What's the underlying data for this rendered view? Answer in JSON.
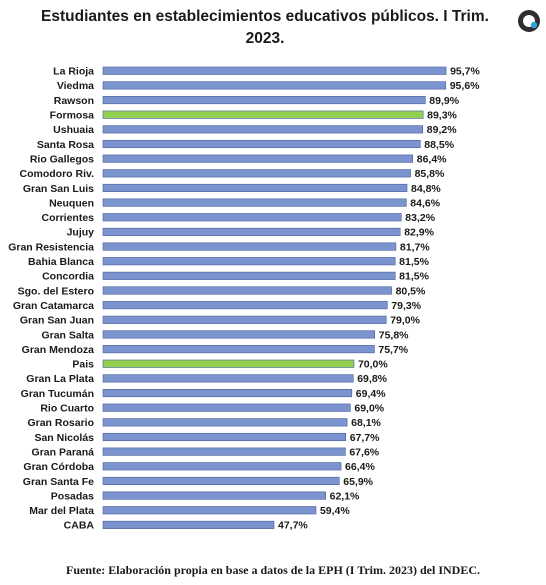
{
  "title": "Estudiantes en establecimientos educativos públicos. I Trim. 2023.",
  "source": "Fuente: Elaboración propia en base a datos de la EPH (I Trim. 2023) del INDEC.",
  "logo_icon": "circle-logo-icon",
  "colors": {
    "default": "#7b93cf",
    "highlight": "#92d050",
    "border": "#4a5f99"
  },
  "chart_data": {
    "type": "bar",
    "orientation": "horizontal",
    "title": "Estudiantes en establecimientos educativos públicos. I Trim. 2023.",
    "xlim": [
      0,
      100
    ],
    "grid": false,
    "categories": [
      "La Rioja",
      "Viedma",
      "Rawson",
      "Formosa",
      "Ushuaia",
      "Santa Rosa",
      "Rio Gallegos",
      "Comodoro Riv.",
      "Gran San Luis",
      "Neuquen",
      "Corrientes",
      "Jujuy",
      "Gran Resistencia",
      "Bahia Blanca",
      "Concordia",
      "Sgo. del Estero",
      "Gran Catamarca",
      "Gran San Juan",
      "Gran Salta",
      "Gran Mendoza",
      "Pais",
      "Gran La Plata",
      "Gran Tucumán",
      "Rio Cuarto",
      "Gran Rosario",
      "San Nicolás",
      "Gran Paraná",
      "Gran Córdoba",
      "Gran Santa Fe",
      "Posadas",
      "Mar del Plata",
      "CABA"
    ],
    "values": [
      95.7,
      95.6,
      89.9,
      89.3,
      89.2,
      88.5,
      86.4,
      85.8,
      84.8,
      84.6,
      83.2,
      82.9,
      81.7,
      81.5,
      81.5,
      80.5,
      79.3,
      79.0,
      75.8,
      75.7,
      70.0,
      69.8,
      69.4,
      69.0,
      68.1,
      67.7,
      67.6,
      66.4,
      65.9,
      62.1,
      59.4,
      47.7
    ],
    "labels": [
      "95,7%",
      "95,6%",
      "89,9%",
      "89,3%",
      "89,2%",
      "88,5%",
      "86,4%",
      "85,8%",
      "84,8%",
      "84,6%",
      "83,2%",
      "82,9%",
      "81,7%",
      "81,5%",
      "81,5%",
      "80,5%",
      "79,3%",
      "79,0%",
      "75,8%",
      "75,7%",
      "70,0%",
      "69,8%",
      "69,4%",
      "69,0%",
      "68,1%",
      "67,7%",
      "67,6%",
      "66,4%",
      "65,9%",
      "62,1%",
      "59,4%",
      "47,7%"
    ],
    "highlighted": [
      "Formosa",
      "Pais"
    ]
  }
}
